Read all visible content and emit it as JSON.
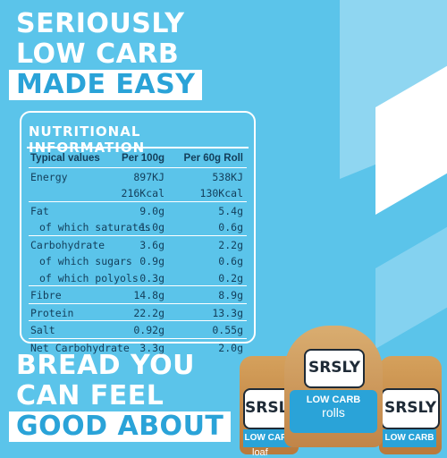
{
  "top_headline": {
    "line1": "SERIOUSLY",
    "line2": "LOW CARB",
    "line3": "MADE EASY"
  },
  "nutrition": {
    "title": "NUTRITIONAL INFORMATION",
    "columns": [
      "Typical values",
      "Per 100g",
      "Per 60g Roll"
    ],
    "rows": [
      {
        "label": "Energy",
        "per100": "897KJ",
        "per60": "538KJ"
      },
      {
        "label": "",
        "per100": "216Kcal",
        "per60": "130Kcal"
      },
      {
        "label": "Fat",
        "per100": "9.0g",
        "per60": "5.4g"
      },
      {
        "label": "of which saturates",
        "per100": "1.0g",
        "per60": "0.6g"
      },
      {
        "label": "Carbohydrate",
        "per100": "3.6g",
        "per60": "2.2g"
      },
      {
        "label": "of which sugars",
        "per100": "0.9g",
        "per60": "0.6g"
      },
      {
        "label": "of which polyols",
        "per100": "0.3g",
        "per60": "0.2g"
      },
      {
        "label": "Fibre",
        "per100": "14.8g",
        "per60": "8.9g"
      },
      {
        "label": "Protein",
        "per100": "22.2g",
        "per60": "13.3g"
      },
      {
        "label": "Salt",
        "per100": "0.92g",
        "per60": "0.55g"
      },
      {
        "label": "Net Carbohydrate",
        "per100": "3.3g",
        "per60": "2.0g"
      }
    ]
  },
  "bottom_headline": {
    "line1": "BREAD YOU",
    "line2": "CAN FEEL",
    "line3": "GOOD ABOUT"
  },
  "products": {
    "brand": "SRSLY",
    "tag": "LOW CARB",
    "center_type": "rolls",
    "side_type": "loaf"
  },
  "colors": {
    "background": "#5bc4ea",
    "accent": "#2aa3d8",
    "text_dark": "#133e5a"
  }
}
